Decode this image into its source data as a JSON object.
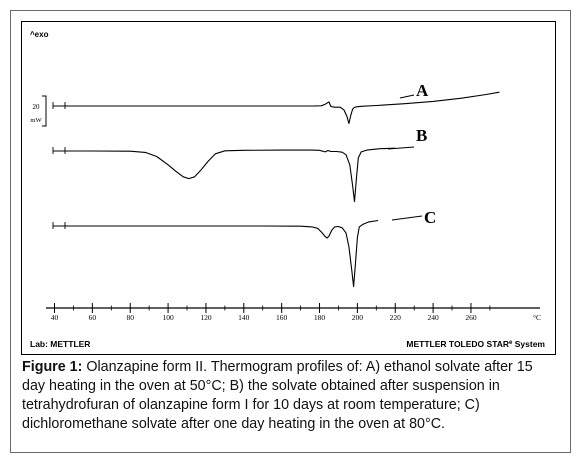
{
  "chart_data": {
    "type": "line",
    "title": "",
    "exo_label": "^exo",
    "xlabel": "",
    "x_unit": "°C",
    "xlim": [
      33,
      276
    ],
    "x_ticks": [
      40,
      60,
      80,
      100,
      120,
      140,
      160,
      180,
      200,
      220,
      240,
      260
    ],
    "scale_bar": {
      "value": "20",
      "unit": "mW"
    },
    "series": [
      {
        "name": "A",
        "x": [
          35,
          100,
          150,
          176,
          181,
          183,
          185,
          186,
          188,
          191,
          193,
          194.5,
          195.5,
          196.5,
          197.5,
          198.5,
          200,
          203,
          210,
          225,
          240,
          255,
          268,
          275
        ],
        "y": [
          0,
          0,
          0,
          0,
          0.05,
          0.4,
          0.9,
          -0.1,
          -0.25,
          -0.25,
          -0.9,
          -2.3,
          -3.8,
          -2.0,
          -0.7,
          -0.3,
          -0.15,
          -0.05,
          0.1,
          0.5,
          1.0,
          1.7,
          2.5,
          3.0
        ]
      },
      {
        "name": "B",
        "x": [
          35,
          60,
          80,
          88,
          94,
          100,
          104,
          108,
          111,
          114,
          117,
          121,
          125,
          130,
          140,
          160,
          175,
          180,
          183,
          184.5,
          186,
          189,
          192,
          194,
          196,
          197.5,
          198.5,
          199.5,
          200.5,
          202,
          205,
          212,
          220
        ],
        "y": [
          0,
          0,
          -0.05,
          -0.3,
          -1.2,
          -3.0,
          -4.4,
          -5.6,
          -6.0,
          -5.6,
          -4.3,
          -2.3,
          -0.6,
          0.05,
          0.15,
          0.2,
          0.2,
          0.15,
          -0.2,
          0.1,
          -0.1,
          -0.1,
          -0.25,
          -0.8,
          -3.0,
          -7.5,
          -11.0,
          -6.0,
          -1.5,
          -0.2,
          0.2,
          0.5,
          0.6
        ]
      },
      {
        "name": "C",
        "x": [
          35,
          100,
          150,
          170,
          176,
          179,
          181,
          183,
          184,
          185,
          186.5,
          188,
          190,
          192,
          194,
          195.5,
          197,
          198,
          199,
          200,
          201,
          203,
          206,
          211
        ],
        "y": [
          0,
          0,
          0,
          -0.05,
          -0.2,
          -0.5,
          -1.3,
          -2.3,
          -2.6,
          -2.2,
          -0.9,
          -0.2,
          -0.1,
          -0.4,
          -1.5,
          -4.5,
          -9.5,
          -13.2,
          -8.0,
          -2.5,
          -0.2,
          0.4,
          0.9,
          1.2
        ]
      }
    ]
  },
  "footer": {
    "lab": "Lab: METTLER",
    "system_main": "METTLER TOLEDO STAR",
    "system_sup": "e",
    "system_end": " System"
  },
  "caption": {
    "label": "Figure 1:",
    "text": " Olanzapine form II. Thermogram profiles of: A) ethanol solvate after 15 day heating in the oven at 50°C; B) the solvate obtained after suspension in tetrahydrofuran of olanzapine form I for 10 days at room temperature; C) dichloromethane solvate after one day heating in the oven at 80°C."
  }
}
